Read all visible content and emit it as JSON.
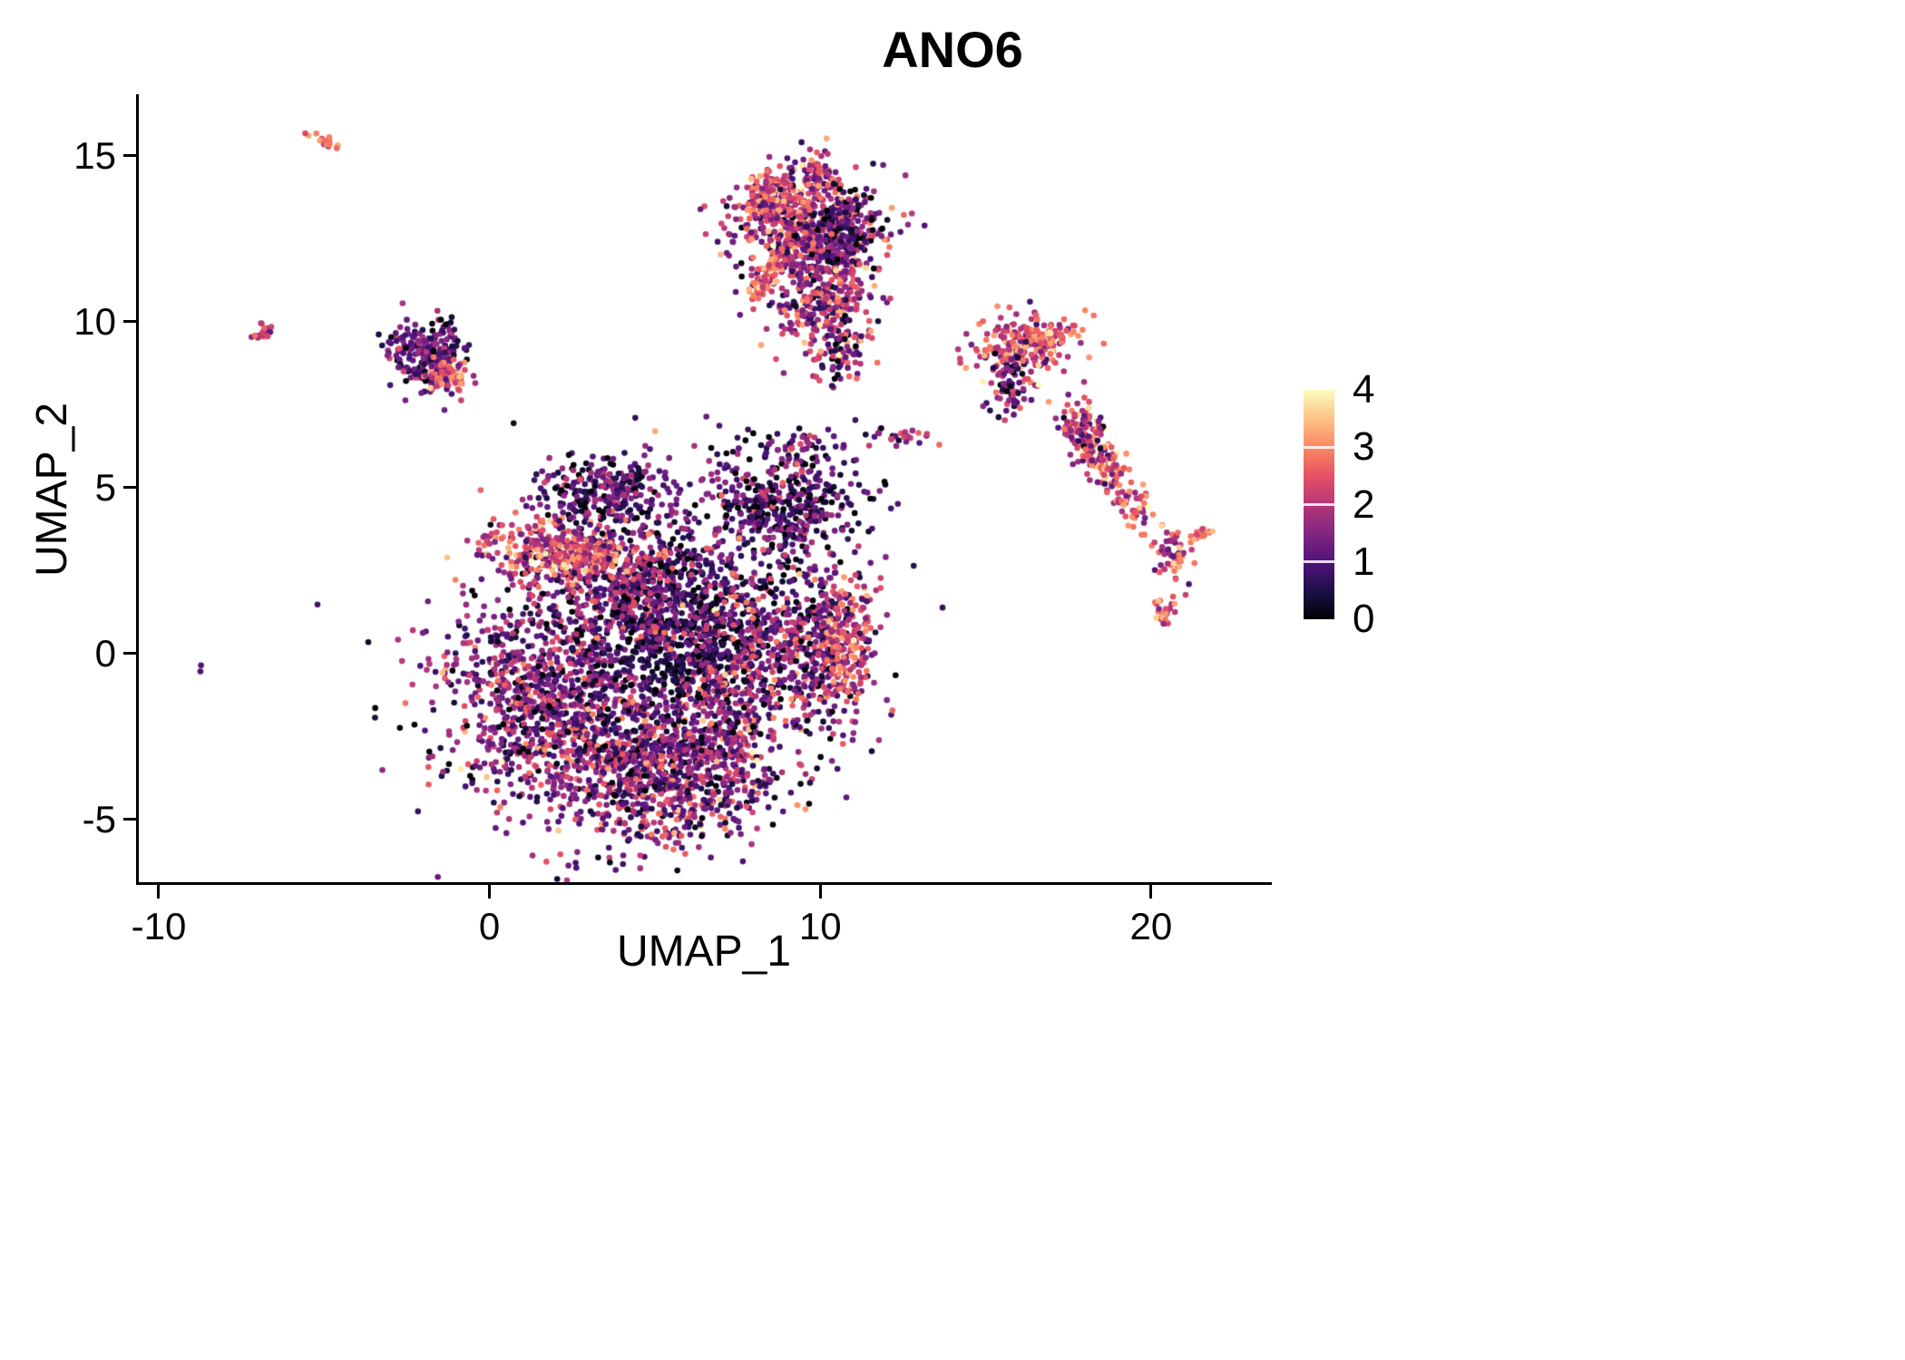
{
  "chart_data": {
    "type": "scatter",
    "title": "ANO6",
    "xlabel": "UMAP_1",
    "ylabel": "UMAP_2",
    "xlim": [
      -10.63,
      23.65
    ],
    "ylim": [
      -6.94,
      16.83
    ],
    "x_ticks": [
      -10,
      0,
      10,
      20
    ],
    "y_ticks": [
      -5,
      0,
      5,
      10,
      15
    ],
    "grid": false,
    "background": "#ffffff",
    "axis_color": "#000000",
    "point_radius": 3.3,
    "seed": 1337,
    "legend": {
      "position": "right",
      "ticks": [
        0,
        1,
        2,
        3,
        4
      ],
      "tick_marks": [
        1,
        2,
        3
      ],
      "domain": [
        0,
        4
      ]
    },
    "colormap": {
      "name": "magma",
      "stops": [
        {
          "t": 0.0,
          "c": "#000004"
        },
        {
          "t": 0.125,
          "c": "#1D1147"
        },
        {
          "t": 0.25,
          "c": "#51127C"
        },
        {
          "t": 0.375,
          "c": "#822681"
        },
        {
          "t": 0.5,
          "c": "#B63679"
        },
        {
          "t": 0.625,
          "c": "#E65164"
        },
        {
          "t": 0.75,
          "c": "#FB8861"
        },
        {
          "t": 0.875,
          "c": "#FEC287"
        },
        {
          "t": 1.0,
          "c": "#FCFDBF"
        }
      ]
    },
    "clusters": [
      {
        "name": "body-left",
        "cx": 1.8,
        "cy": -1.3,
        "sx": 1.7,
        "sy": 1.5,
        "rot": 0,
        "n": 1000,
        "em": 1.4,
        "es": 0.85
      },
      {
        "name": "body-bottom",
        "cx": 5.3,
        "cy": -3.6,
        "sx": 1.7,
        "sy": 1.1,
        "rot": 0,
        "n": 850,
        "em": 1.5,
        "es": 0.9
      },
      {
        "name": "body-core-dark",
        "cx": 5.9,
        "cy": 0.6,
        "sx": 1.4,
        "sy": 1.5,
        "rot": 0,
        "n": 800,
        "em": 0.55,
        "es": 0.5
      },
      {
        "name": "body-upper",
        "cx": 4.0,
        "cy": 2.3,
        "sx": 1.6,
        "sy": 0.9,
        "rot": 0,
        "n": 500,
        "em": 1.3,
        "es": 0.8
      },
      {
        "name": "orange-band",
        "cx": 2.3,
        "cy": 3.0,
        "sx": 1.2,
        "sy": 0.45,
        "rot": -10,
        "n": 330,
        "em": 2.4,
        "es": 0.7
      },
      {
        "name": "top-arc",
        "cx": 3.5,
        "cy": 4.9,
        "sx": 1.1,
        "sy": 0.5,
        "rot": 0,
        "n": 260,
        "em": 1.0,
        "es": 0.7
      },
      {
        "name": "upper-right-dark",
        "cx": 8.8,
        "cy": 4.5,
        "sx": 1.2,
        "sy": 0.9,
        "rot": 0,
        "n": 480,
        "em": 0.9,
        "es": 0.7
      },
      {
        "name": "right-lobe",
        "cx": 9.7,
        "cy": 0.2,
        "sx": 1.0,
        "sy": 1.3,
        "rot": 0,
        "n": 480,
        "em": 1.4,
        "es": 0.85
      },
      {
        "name": "right-edge-pink",
        "cx": 10.8,
        "cy": 0.3,
        "sx": 0.4,
        "sy": 0.9,
        "rot": 0,
        "n": 130,
        "em": 2.5,
        "es": 0.6
      },
      {
        "name": "mid-column",
        "cx": 7.4,
        "cy": -1.0,
        "sx": 0.8,
        "sy": 1.6,
        "rot": 0,
        "n": 320,
        "em": 1.7,
        "es": 0.8
      },
      {
        "name": "halo",
        "cx": 4.8,
        "cy": -0.8,
        "sx": 3.4,
        "sy": 2.9,
        "rot": 0,
        "n": 260,
        "em": 1.2,
        "es": 0.8
      },
      {
        "name": "top-main",
        "cx": 9.6,
        "cy": 12.7,
        "sx": 1.1,
        "sy": 0.95,
        "rot": 0,
        "n": 650,
        "em": 1.8,
        "es": 0.9
      },
      {
        "name": "top-left-lobe",
        "cx": 8.6,
        "cy": 13.7,
        "sx": 0.5,
        "sy": 0.45,
        "rot": 0,
        "n": 150,
        "em": 2.2,
        "es": 0.8
      },
      {
        "name": "top-dark-sub",
        "cx": 10.6,
        "cy": 12.7,
        "sx": 0.5,
        "sy": 0.6,
        "rot": 0,
        "n": 180,
        "em": 1.0,
        "es": 0.7
      },
      {
        "name": "top-bottom-lobe",
        "cx": 10.2,
        "cy": 10.4,
        "sx": 0.7,
        "sy": 0.8,
        "rot": 0,
        "n": 260,
        "em": 1.8,
        "es": 0.9
      },
      {
        "name": "orange-streak",
        "cx": 8.35,
        "cy": 11.3,
        "sx": 0.38,
        "sy": 0.14,
        "rot": 55,
        "n": 70,
        "em": 2.8,
        "es": 0.5
      },
      {
        "name": "top-tip",
        "cx": 9.9,
        "cy": 14.45,
        "sx": 0.18,
        "sy": 0.3,
        "rot": 0,
        "n": 45,
        "em": 2.2,
        "es": 0.7
      },
      {
        "name": "top-trail",
        "cx": 10.7,
        "cy": 9.0,
        "sx": 0.5,
        "sy": 0.5,
        "rot": 0,
        "n": 45,
        "em": 1.4,
        "es": 0.8
      },
      {
        "name": "left-cluster-dark",
        "cx": -1.9,
        "cy": 9.0,
        "sx": 0.6,
        "sy": 0.5,
        "rot": 0,
        "n": 240,
        "em": 1.1,
        "es": 0.6
      },
      {
        "name": "left-cluster-orange",
        "cx": -1.25,
        "cy": 8.35,
        "sx": 0.35,
        "sy": 0.25,
        "rot": 0,
        "n": 70,
        "em": 2.6,
        "es": 0.6
      },
      {
        "name": "tiny-left",
        "cx": -6.9,
        "cy": 9.65,
        "sx": 0.13,
        "sy": 0.13,
        "rot": 0,
        "n": 25,
        "em": 2.0,
        "es": 0.7
      },
      {
        "name": "tiny-topleft-streak",
        "cx": -4.9,
        "cy": 15.4,
        "sx": 0.25,
        "sy": 0.07,
        "rot": -25,
        "n": 22,
        "em": 2.7,
        "es": 0.5
      },
      {
        "name": "lone-point",
        "cx": -8.7,
        "cy": -0.45,
        "sx": 0.05,
        "sy": 0.05,
        "rot": 0,
        "n": 2,
        "em": 1.0,
        "es": 0.3
      },
      {
        "name": "right-a",
        "cx": 16.0,
        "cy": 9.2,
        "sx": 0.75,
        "sy": 0.45,
        "rot": 15,
        "n": 190,
        "em": 2.3,
        "es": 0.8
      },
      {
        "name": "right-a2",
        "cx": 16.9,
        "cy": 9.55,
        "sx": 0.5,
        "sy": 0.15,
        "rot": 15,
        "n": 55,
        "em": 2.8,
        "es": 0.5
      },
      {
        "name": "right-a-below",
        "cx": 15.8,
        "cy": 8.2,
        "sx": 0.4,
        "sy": 0.55,
        "rot": 0,
        "n": 70,
        "em": 1.2,
        "es": 0.7
      },
      {
        "name": "right-b-streak",
        "cx": 18.6,
        "cy": 5.7,
        "sx": 1.1,
        "sy": 0.33,
        "rot": -55,
        "n": 210,
        "em": 2.5,
        "es": 0.8
      },
      {
        "name": "right-b-top",
        "cx": 17.95,
        "cy": 6.75,
        "sx": 0.3,
        "sy": 0.3,
        "rot": 0,
        "n": 55,
        "em": 1.6,
        "es": 0.8
      },
      {
        "name": "small-y",
        "cx": 20.6,
        "cy": 2.9,
        "sx": 0.28,
        "sy": 0.42,
        "rot": 0,
        "n": 55,
        "em": 2.3,
        "es": 0.7
      },
      {
        "name": "small-dot2",
        "cx": 20.4,
        "cy": 1.25,
        "sx": 0.14,
        "sy": 0.25,
        "rot": 0,
        "n": 28,
        "em": 2.4,
        "es": 0.6
      },
      {
        "name": "small-dash",
        "cx": 21.5,
        "cy": 3.6,
        "sx": 0.22,
        "sy": 0.1,
        "rot": 20,
        "n": 20,
        "em": 2.8,
        "es": 0.4
      },
      {
        "name": "mid-right-streak",
        "cx": 12.4,
        "cy": 6.55,
        "sx": 0.45,
        "sy": 0.12,
        "rot": 0,
        "n": 26,
        "em": 1.8,
        "es": 0.7
      },
      {
        "name": "sparse-mid",
        "cx": 9.7,
        "cy": 6.3,
        "sx": 0.35,
        "sy": 0.3,
        "rot": 0,
        "n": 14,
        "em": 1.3,
        "es": 0.6
      }
    ]
  }
}
